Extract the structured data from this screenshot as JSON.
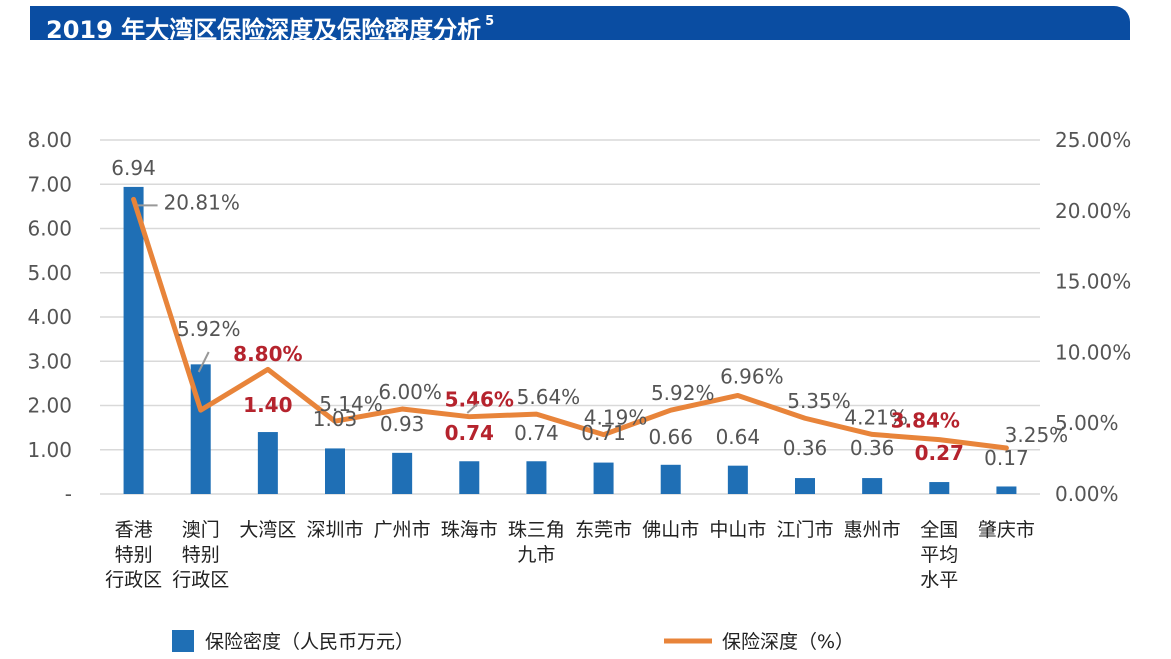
{
  "header": {
    "title": "2019 年大湾区保险深度及保险密度分析",
    "footnote": "5"
  },
  "chart_data": {
    "type": "bar+line",
    "categories": [
      [
        "香港",
        "特别",
        "行政区"
      ],
      [
        "澳门",
        "特别",
        "行政区"
      ],
      [
        "大湾区"
      ],
      [
        "深圳市"
      ],
      [
        "广州市"
      ],
      [
        "珠海市"
      ],
      [
        "珠三角",
        "九市"
      ],
      [
        "东莞市"
      ],
      [
        "佛山市"
      ],
      [
        "中山市"
      ],
      [
        "江门市"
      ],
      [
        "惠州市"
      ],
      [
        "全国",
        "平均",
        "水平"
      ],
      [
        "肇庆市"
      ]
    ],
    "series": [
      {
        "name": "保险密度（人民币万元）",
        "type": "bar",
        "axis": "left",
        "color": "#1f6fb5",
        "values": [
          6.94,
          2.93,
          1.4,
          1.03,
          0.93,
          0.74,
          0.74,
          0.71,
          0.66,
          0.64,
          0.36,
          0.36,
          0.27,
          0.17
        ],
        "labels": [
          "6.94",
          "",
          "1.40",
          "1.03",
          "0.93",
          "0.74",
          "0.74",
          "0.71",
          "0.66",
          "0.64",
          "0.36",
          "0.36",
          "0.27",
          "0.17"
        ],
        "highlight": [
          2,
          5,
          12
        ]
      },
      {
        "name": "保险深度（%）",
        "type": "line",
        "axis": "right",
        "color": "#e8843a",
        "values": [
          20.81,
          5.92,
          8.8,
          5.14,
          6.0,
          5.46,
          5.64,
          4.19,
          5.92,
          6.96,
          5.35,
          4.21,
          3.84,
          3.25
        ],
        "labels": [
          "20.81%",
          "5.92%",
          "8.80%",
          "5.14%",
          "6.00%",
          "5.46%",
          "5.64%",
          "4.19%",
          "5.92%",
          "6.96%",
          "5.35%",
          "4.21%",
          "3.84%",
          "3.25%"
        ],
        "highlight": [
          2,
          5,
          12
        ]
      }
    ],
    "left_axis": {
      "min": 0,
      "max": 8,
      "ticks": [
        "-",
        "1.00",
        "2.00",
        "3.00",
        "4.00",
        "5.00",
        "6.00",
        "7.00",
        "8.00"
      ]
    },
    "right_axis": {
      "min": 0,
      "max": 25,
      "ticks": [
        "0.00%",
        "5.00%",
        "10.00%",
        "15.00%",
        "20.00%",
        "25.00%"
      ]
    },
    "grid": true,
    "legend_position": "bottom",
    "colors": {
      "bar": "#1f6fb5",
      "line": "#e8843a",
      "highlight": "#b5232d",
      "title_bg": "#0a4da2"
    }
  }
}
